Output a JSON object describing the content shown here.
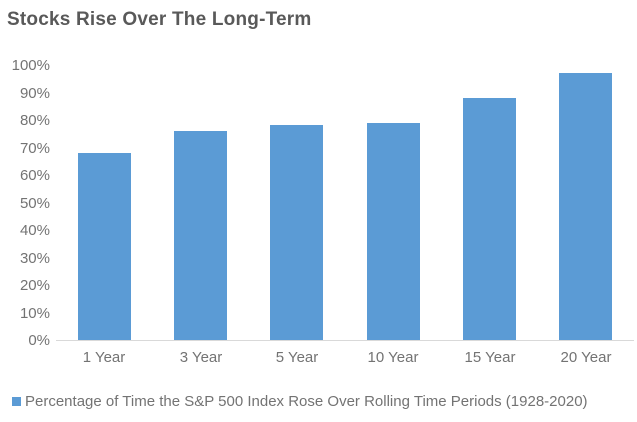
{
  "chart_data": {
    "type": "bar",
    "title": "Stocks Rise Over The Long-Term",
    "categories": [
      "1 Year",
      "3 Year",
      "5 Year",
      "10 Year",
      "15 Year",
      "20 Year"
    ],
    "values": [
      68,
      76,
      78,
      79,
      88,
      97
    ],
    "legend": [
      "Percentage of Time the S&P 500 Index Rose Over Rolling Time Periods (1928-2020)"
    ],
    "xlabel": "",
    "ylabel": "",
    "ylim": [
      0,
      100
    ],
    "ytick_step": 10,
    "ytick_labels": [
      "0%",
      "10%",
      "20%",
      "30%",
      "40%",
      "50%",
      "60%",
      "70%",
      "80%",
      "90%",
      "100%"
    ],
    "grid": false,
    "legend_position": "bottom-left",
    "colors": {
      "bar": "#5B9BD5",
      "axis_line": "#D9D9D9",
      "title_text": "#595959",
      "label_text": "#737373"
    }
  }
}
